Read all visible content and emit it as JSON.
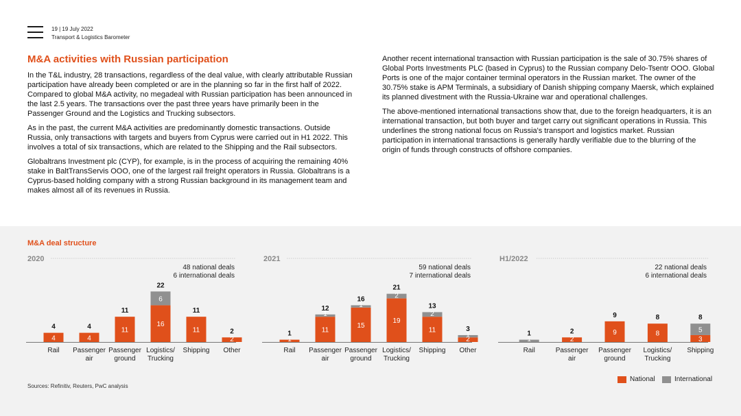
{
  "header": {
    "page_info": "19  |  19 July 2022",
    "report_name": "Transport & Logistics Barometer"
  },
  "title": "M&A activities with Russian participation",
  "paragraphs_left": [
    "In the T&L industry, 28 transactions, regardless of the deal value, with clearly attributable Russian participation have already been completed or are in the planning so far in the first half of 2022. Compared to global M&A activity, no megadeal with Russian participation has been announced in the last 2.5 years. The transactions over the past three years have primarily been in the Passenger Ground and the Logistics and Trucking subsectors.",
    "As in the past, the current M&A activities are predominantly domestic transactions. Outside Russia, only transactions with targets and buyers from Cyprus were carried out in H1 2022. This involves a total of six transactions, which are related to the Shipping and the Rail subsectors.",
    "Globaltrans Investment plc (CYP), for example, is in the process of acquiring the remaining 40% stake in BaltTransServis OOO, one of the largest rail freight operators in Russia. Globaltrans is a Cyprus-based holding company with a strong Russian background in its management team and makes almost all of its revenues in Russia."
  ],
  "paragraphs_right": [
    "Another recent international transaction with Russian participation is the sale of 30.75% shares of Global Ports Investments PLC (based in Cyprus) to the Russian company Delo-Tsentr OOO. Global Ports is one of the major container terminal operators in the Russian market. The owner of the 30.75% stake is APM Terminals, a subsidiary of Danish shipping company Maersk, which explained its planned divestment with the Russia-Ukraine war and operational challenges.",
    "The above-mentioned international transactions show that, due to the foreign headquarters, it is an international transaction, but both buyer and target carry out significant operations in Russia. This underlines the strong national focus on Russia's transport and logistics market. Russian participation in international transactions is generally hardly verifiable due to the blurring of the origin of funds through constructs of offshore companies."
  ],
  "section_title": "M&A deal structure",
  "sources": "Sources: Refinitiv, Reuters, PwC analysis",
  "legend": {
    "national": "National",
    "international": "International"
  },
  "colors": {
    "national": "#e0501b",
    "international": "#909090",
    "accent": "#e0501b"
  },
  "chart_data": [
    {
      "type": "bar",
      "stacked": true,
      "title": "2020",
      "summary": [
        "48 national deals",
        "6 international deals"
      ],
      "categories": [
        [
          "Rail"
        ],
        [
          "Passenger",
          "air"
        ],
        [
          "Passenger",
          "ground"
        ],
        [
          "Logistics/",
          "Trucking"
        ],
        [
          "Shipping"
        ],
        [
          "Other"
        ]
      ],
      "series": [
        {
          "name": "National",
          "values": [
            4,
            4,
            11,
            16,
            11,
            2
          ]
        },
        {
          "name": "International",
          "values": [
            0,
            0,
            0,
            6,
            0,
            0
          ]
        }
      ],
      "totals": [
        4,
        4,
        11,
        22,
        11,
        2
      ]
    },
    {
      "type": "bar",
      "stacked": true,
      "title": "2021",
      "summary": [
        "59 national deals",
        "7 international deals"
      ],
      "categories": [
        [
          "Rail"
        ],
        [
          "Passenger",
          "air"
        ],
        [
          "Passenger",
          "ground"
        ],
        [
          "Logistics/",
          "Trucking"
        ],
        [
          "Shipping"
        ],
        [
          "Other"
        ]
      ],
      "series": [
        {
          "name": "National",
          "values": [
            1,
            11,
            15,
            19,
            11,
            2
          ]
        },
        {
          "name": "International",
          "values": [
            0,
            1,
            1,
            2,
            2,
            1
          ]
        }
      ],
      "totals": [
        1,
        12,
        16,
        21,
        13,
        3
      ]
    },
    {
      "type": "bar",
      "stacked": true,
      "title": "H1/2022",
      "summary": [
        "22 national deals",
        "6 international deals"
      ],
      "categories": [
        [
          "Rail"
        ],
        [
          "Passenger",
          "air"
        ],
        [
          "Passenger",
          "ground"
        ],
        [
          "Logistics/",
          "Trucking"
        ],
        [
          "Shipping"
        ]
      ],
      "series": [
        {
          "name": "National",
          "values": [
            0,
            2,
            9,
            8,
            3
          ]
        },
        {
          "name": "International",
          "values": [
            1,
            0,
            0,
            0,
            5
          ]
        }
      ],
      "totals": [
        1,
        2,
        9,
        8,
        8
      ]
    }
  ]
}
